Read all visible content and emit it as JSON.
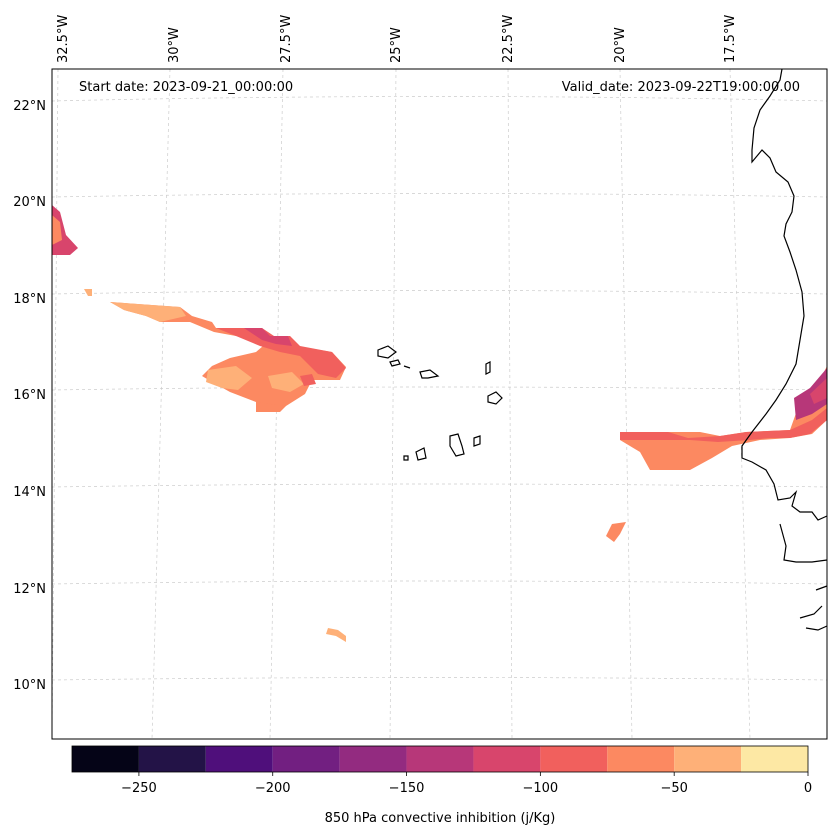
{
  "header": {
    "start_date": "Start date: 2023-09-21_00:00:00",
    "valid_date": "Valid_date: 2023-09-22T19:00:00.00"
  },
  "longitude_labels": [
    "32.5°W",
    "30°W",
    "27.5°W",
    "25°W",
    "22.5°W",
    "20°W",
    "17.5°W"
  ],
  "latitude_labels": [
    "22°N",
    "20°N",
    "18°N",
    "16°N",
    "14°N",
    "12°N",
    "10°N"
  ],
  "colorbar": {
    "label": "850 hPa convective inhibition (j/Kg)",
    "tick_labels": [
      "−250",
      "−200",
      "−150",
      "−100",
      "−50",
      "0"
    ],
    "range": [
      -275,
      0
    ],
    "levels": [
      -275,
      -250,
      -225,
      -200,
      -175,
      -150,
      -125,
      -100,
      -75,
      -50,
      -25,
      0
    ],
    "colors": [
      "#050417",
      "#231347",
      "#4f0f7b",
      "#721f81",
      "#932b80",
      "#b73779",
      "#d8456c",
      "#f1605d",
      "#fc8961",
      "#feb078",
      "#fde8a4"
    ]
  },
  "map_data": {
    "variable": "850 hPa convective inhibition",
    "units": "j/Kg",
    "extent": {
      "lon_min": -33,
      "lon_max": -15.5,
      "lat_min": 8.5,
      "lat_max": 22.5
    }
  }
}
